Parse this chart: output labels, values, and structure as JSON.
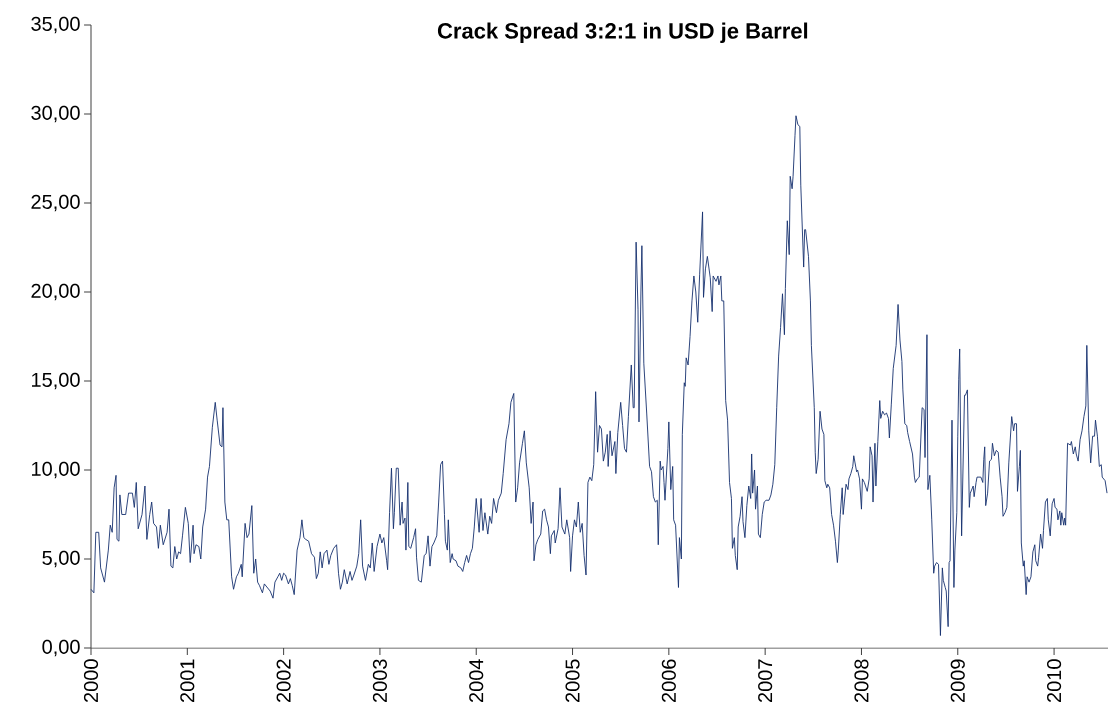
{
  "chart_data": {
    "type": "line",
    "title": "Crack Spread 3:2:1 in USD je Barrel",
    "color": "#15306e",
    "xlim": [
      2000,
      2010.56
    ],
    "ylim": [
      0,
      35
    ],
    "xticks": [
      2000,
      2001,
      2002,
      2003,
      2004,
      2005,
      2006,
      2007,
      2008,
      2009,
      2010
    ],
    "yticks": [
      {
        "value": 0,
        "label": "0,00"
      },
      {
        "value": 5,
        "label": "5,00"
      },
      {
        "value": 10,
        "label": "10,00"
      },
      {
        "value": 15,
        "label": "15,00"
      },
      {
        "value": 20,
        "label": "20,00"
      },
      {
        "value": 25,
        "label": "25,00"
      },
      {
        "value": 30,
        "label": "30,00"
      },
      {
        "value": 35,
        "label": "35,00"
      }
    ],
    "x": [
      2000.0,
      2000.03,
      2000.05,
      2000.08,
      2000.1,
      2000.14,
      2000.18,
      2000.2,
      2000.22,
      2000.24,
      2000.26,
      2000.27,
      2000.29,
      2000.3,
      2000.32,
      2000.36,
      2000.39,
      2000.43,
      2000.45,
      2000.47,
      2000.49,
      2000.53,
      2000.56,
      2000.58,
      2000.61,
      2000.63,
      2000.65,
      2000.68,
      2000.7,
      2000.72,
      2000.75,
      2000.79,
      2000.81,
      2000.83,
      2000.85,
      2000.87,
      2000.89,
      2000.91,
      2000.93,
      2000.95,
      2000.98,
      2001.01,
      2001.03,
      2001.06,
      2001.07,
      2001.09,
      2001.12,
      2001.14,
      2001.16,
      2001.19,
      2001.21,
      2001.23,
      2001.26,
      2001.29,
      2001.31,
      2001.34,
      2001.36,
      2001.37,
      2001.39,
      2001.41,
      2001.43,
      2001.46,
      2001.48,
      2001.51,
      2001.53,
      2001.56,
      2001.57,
      2001.6,
      2001.62,
      2001.64,
      2001.67,
      2001.69,
      2001.71,
      2001.73,
      2001.75,
      2001.78,
      2001.8,
      2001.83,
      2001.86,
      2001.89,
      2001.91,
      2001.94,
      2001.96,
      2001.98,
      2002.0,
      2002.02,
      2002.05,
      2002.07,
      2002.09,
      2002.11,
      2002.14,
      2002.17,
      2002.19,
      2002.21,
      2002.23,
      2002.26,
      2002.29,
      2002.32,
      2002.34,
      2002.36,
      2002.38,
      2002.4,
      2002.42,
      2002.45,
      2002.47,
      2002.49,
      2002.52,
      2002.55,
      2002.57,
      2002.59,
      2002.61,
      2002.63,
      2002.66,
      2002.69,
      2002.71,
      2002.73,
      2002.76,
      2002.78,
      2002.8,
      2002.82,
      2002.85,
      2002.88,
      2002.9,
      2002.92,
      2002.94,
      2002.97,
      2003.0,
      2003.02,
      2003.04,
      2003.07,
      2003.08,
      2003.1,
      2003.12,
      2003.14,
      2003.15,
      2003.17,
      2003.19,
      2003.21,
      2003.23,
      2003.24,
      2003.26,
      2003.27,
      2003.29,
      2003.3,
      2003.32,
      2003.35,
      2003.37,
      2003.38,
      2003.4,
      2003.43,
      2003.46,
      2003.48,
      2003.5,
      2003.52,
      2003.54,
      2003.56,
      2003.59,
      2003.61,
      2003.63,
      2003.65,
      2003.67,
      2003.68,
      2003.7,
      2003.71,
      2003.73,
      2003.75,
      2003.76,
      2003.79,
      2003.81,
      2003.84,
      2003.86,
      2003.88,
      2003.9,
      2003.92,
      2003.94,
      2003.96,
      2003.98,
      2004.0,
      2004.03,
      2004.05,
      2004.07,
      2004.09,
      2004.12,
      2004.14,
      2004.16,
      2004.18,
      2004.21,
      2004.23,
      2004.26,
      2004.28,
      2004.31,
      2004.34,
      2004.36,
      2004.39,
      2004.41,
      2004.43,
      2004.45,
      2004.48,
      2004.5,
      2004.52,
      2004.55,
      2004.57,
      2004.59,
      2004.6,
      2004.62,
      2004.64,
      2004.67,
      2004.69,
      2004.71,
      2004.73,
      2004.75,
      2004.77,
      2004.78,
      2004.81,
      2004.82,
      2004.85,
      2004.87,
      2004.89,
      2004.92,
      2004.94,
      2004.97,
      2004.98,
      2005.0,
      2005.02,
      2005.04,
      2005.06,
      2005.08,
      2005.1,
      2005.12,
      2005.14,
      2005.16,
      2005.18,
      2005.2,
      2005.22,
      2005.24,
      2005.26,
      2005.28,
      2005.3,
      2005.32,
      2005.34,
      2005.36,
      2005.37,
      2005.39,
      2005.41,
      2005.44,
      2005.45,
      2005.47,
      2005.5,
      2005.52,
      2005.54,
      2005.56,
      2005.58,
      2005.61,
      2005.63,
      2005.64,
      2005.66,
      2005.68,
      2005.69,
      2005.71,
      2005.72,
      2005.74,
      2005.77,
      2005.8,
      2005.82,
      2005.84,
      2005.86,
      2005.88,
      2005.89,
      2005.91,
      2005.92,
      2005.94,
      2005.95,
      2005.96,
      2005.99,
      2006.0,
      2006.02,
      2006.04,
      2006.05,
      2006.07,
      2006.1,
      2006.11,
      2006.13,
      2006.14,
      2006.16,
      2006.17,
      2006.18,
      2006.2,
      2006.22,
      2006.24,
      2006.26,
      2006.28,
      2006.3,
      2006.32,
      2006.35,
      2006.36,
      2006.38,
      2006.4,
      2006.43,
      2006.45,
      2006.46,
      2006.49,
      2006.51,
      2006.52,
      2006.54,
      2006.55,
      2006.57,
      2006.59,
      2006.61,
      2006.63,
      2006.65,
      2006.66,
      2006.68,
      2006.69,
      2006.71,
      2006.72,
      2006.74,
      2006.76,
      2006.77,
      2006.79,
      2006.81,
      2006.83,
      2006.85,
      2006.86,
      2006.87,
      2006.89,
      2006.9,
      2006.92,
      2006.93,
      2006.95,
      2006.97,
      2006.99,
      2007.01,
      2007.04,
      2007.06,
      2007.08,
      2007.1,
      2007.12,
      2007.14,
      2007.16,
      2007.18,
      2007.2,
      2007.21,
      2007.23,
      2007.25,
      2007.26,
      2007.28,
      2007.29,
      2007.31,
      2007.32,
      2007.34,
      2007.36,
      2007.37,
      2007.4,
      2007.41,
      2007.42,
      2007.45,
      2007.47,
      2007.48,
      2007.51,
      2007.52,
      2007.53,
      2007.55,
      2007.57,
      2007.59,
      2007.61,
      2007.62,
      2007.64,
      2007.65,
      2007.67,
      2007.69,
      2007.71,
      2007.73,
      2007.75,
      2007.76,
      2007.78,
      2007.8,
      2007.81,
      2007.84,
      2007.86,
      2007.87,
      2007.89,
      2007.91,
      2007.92,
      2007.95,
      2007.96,
      2007.98,
      2008.0,
      2008.01,
      2008.03,
      2008.06,
      2008.08,
      2008.09,
      2008.11,
      2008.12,
      2008.14,
      2008.15,
      2008.17,
      2008.19,
      2008.2,
      2008.22,
      2008.24,
      2008.26,
      2008.28,
      2008.29,
      2008.31,
      2008.33,
      2008.36,
      2008.38,
      2008.4,
      2008.42,
      2008.43,
      2008.45,
      2008.47,
      2008.48,
      2008.5,
      2008.53,
      2008.55,
      2008.56,
      2008.58,
      2008.6,
      2008.63,
      2008.65,
      2008.66,
      2008.68,
      2008.69,
      2008.71,
      2008.73,
      2008.75,
      2008.76,
      2008.78,
      2008.8,
      2008.82,
      2008.84,
      2008.85,
      2008.87,
      2008.88,
      2008.9,
      2008.91,
      2008.92,
      2008.94,
      2008.96,
      2008.97,
      2008.99,
      2009.0,
      2009.01,
      2009.02,
      2009.04,
      2009.07,
      2009.08,
      2009.1,
      2009.12,
      2009.13,
      2009.16,
      2009.17,
      2009.19,
      2009.2,
      2009.23,
      2009.24,
      2009.26,
      2009.27,
      2009.28,
      2009.29,
      2009.31,
      2009.33,
      2009.35,
      2009.36,
      2009.38,
      2009.4,
      2009.42,
      2009.44,
      2009.46,
      2009.47,
      2009.49,
      2009.51,
      2009.53,
      2009.56,
      2009.58,
      2009.59,
      2009.61,
      2009.62,
      2009.64,
      2009.65,
      2009.66,
      2009.68,
      2009.69,
      2009.71,
      2009.72,
      2009.74,
      2009.76,
      2009.78,
      2009.8,
      2009.81,
      2009.83,
      2009.84,
      2009.86,
      2009.88,
      2009.89,
      2009.91,
      2009.93,
      2009.94,
      2009.96,
      2009.98,
      2010.0,
      2010.01,
      2010.03,
      2010.04,
      2010.06,
      2010.07,
      2010.08,
      2010.1,
      2010.11,
      2010.12,
      2010.14,
      2010.17,
      2010.18,
      2010.2,
      2010.22,
      2010.23,
      2010.25,
      2010.27,
      2010.29,
      2010.31,
      2010.33,
      2010.34,
      2010.36,
      2010.38,
      2010.4,
      2010.42,
      2010.43,
      2010.45,
      2010.47,
      2010.49,
      2010.5,
      2010.53,
      2010.55
    ],
    "values": [
      3.3,
      3.1,
      6.5,
      6.5,
      4.5,
      3.7,
      5.5,
      6.9,
      6.5,
      9.0,
      9.7,
      6.1,
      6.0,
      8.6,
      7.5,
      7.5,
      8.7,
      8.7,
      7.9,
      9.3,
      6.7,
      7.5,
      9.1,
      6.1,
      7.5,
      8.2,
      7.0,
      6.8,
      5.6,
      6.9,
      5.8,
      6.5,
      7.8,
      4.6,
      4.5,
      5.7,
      5.0,
      5.4,
      5.3,
      6.3,
      7.9,
      7.0,
      4.8,
      6.9,
      5.3,
      5.8,
      5.7,
      5.0,
      6.8,
      7.8,
      9.6,
      10.2,
      12.4,
      13.8,
      12.8,
      11.4,
      11.3,
      13.5,
      8.2,
      7.2,
      7.2,
      4.0,
      3.3,
      4.0,
      4.2,
      4.7,
      4.0,
      7.0,
      6.2,
      6.4,
      8.0,
      4.2,
      5.0,
      3.7,
      3.5,
      3.1,
      3.6,
      3.4,
      3.2,
      2.8,
      3.7,
      4.0,
      4.2,
      3.8,
      4.2,
      4.1,
      3.6,
      3.9,
      3.5,
      3.0,
      5.5,
      6.2,
      7.2,
      6.2,
      6.1,
      6.0,
      5.3,
      5.1,
      3.9,
      4.2,
      5.4,
      4.5,
      5.3,
      5.5,
      4.7,
      5.2,
      5.6,
      5.8,
      4.2,
      3.3,
      3.7,
      4.4,
      3.6,
      4.3,
      3.8,
      4.1,
      4.6,
      5.3,
      7.2,
      4.6,
      3.8,
      4.7,
      4.5,
      5.9,
      4.3,
      5.7,
      6.4,
      5.9,
      6.2,
      4.9,
      4.4,
      7.6,
      10.1,
      6.7,
      7.6,
      10.1,
      10.1,
      6.9,
      8.2,
      7.0,
      7.3,
      5.5,
      9.3,
      5.7,
      5.6,
      6.2,
      6.7,
      5.1,
      3.8,
      3.7,
      5.2,
      5.3,
      6.3,
      4.6,
      5.7,
      5.9,
      6.3,
      8.2,
      10.3,
      10.5,
      7.5,
      6.0,
      5.5,
      7.2,
      4.8,
      5.3,
      5.0,
      4.9,
      4.6,
      4.5,
      4.3,
      4.8,
      5.2,
      4.8,
      5.3,
      5.6,
      6.8,
      8.4,
      6.5,
      8.4,
      6.6,
      7.6,
      6.4,
      7.4,
      7.0,
      8.4,
      7.6,
      8.3,
      8.7,
      9.8,
      11.7,
      12.6,
      13.8,
      14.3,
      8.2,
      9.0,
      10.4,
      11.5,
      12.2,
      10.4,
      9.0,
      7.0,
      8.2,
      4.9,
      5.8,
      6.1,
      6.4,
      7.7,
      7.8,
      7.2,
      6.8,
      5.3,
      6.3,
      6.6,
      5.9,
      6.7,
      9.0,
      6.8,
      6.4,
      7.2,
      6.2,
      4.3,
      6.3,
      7.2,
      6.8,
      8.2,
      6.5,
      7.0,
      5.2,
      4.1,
      9.3,
      9.6,
      9.4,
      10.3,
      14.4,
      11.0,
      12.5,
      12.3,
      10.5,
      11.0,
      12.0,
      10.2,
      12.2,
      10.8,
      11.6,
      9.8,
      12.1,
      13.8,
      12.5,
      11.2,
      11.0,
      13.0,
      15.9,
      13.5,
      13.5,
      22.8,
      19.0,
      12.7,
      20.0,
      22.6,
      16.0,
      13.2,
      10.2,
      9.9,
      8.5,
      8.2,
      8.3,
      5.8,
      10.5,
      10.0,
      10.2,
      9.3,
      8.3,
      11.2,
      12.7,
      8.9,
      10.2,
      7.2,
      6.9,
      3.4,
      6.2,
      5.0,
      12.0,
      14.9,
      14.7,
      16.3,
      15.9,
      17.5,
      19.5,
      20.9,
      20.0,
      18.3,
      21.0,
      24.5,
      19.7,
      21.3,
      22.0,
      20.8,
      18.9,
      20.9,
      20.6,
      20.9,
      20.4,
      20.9,
      19.5,
      19.5,
      13.9,
      12.8,
      9.3,
      8.4,
      5.6,
      6.2,
      5.2,
      4.4,
      6.8,
      7.4,
      8.5,
      7.1,
      6.2,
      8.0,
      9.1,
      8.4,
      10.9,
      8.7,
      10.0,
      7.8,
      9.1,
      6.4,
      6.2,
      7.5,
      8.2,
      8.3,
      8.3,
      8.6,
      9.2,
      10.3,
      13.5,
      16.4,
      18.0,
      19.9,
      17.6,
      20.2,
      24.0,
      22.1,
      26.5,
      25.8,
      26.5,
      28.8,
      29.9,
      29.4,
      29.3,
      26.0,
      21.4,
      23.5,
      23.5,
      22.0,
      19.5,
      17.0,
      13.5,
      11.0,
      9.8,
      10.6,
      13.3,
      12.3,
      12.0,
      9.4,
      9.0,
      9.2,
      9.0,
      7.5,
      6.9,
      6.0,
      4.8,
      5.5,
      7.5,
      9.0,
      7.5,
      9.2,
      8.9,
      9.5,
      9.8,
      10.2,
      10.8,
      9.9,
      10.0,
      9.5,
      7.8,
      9.5,
      9.3,
      8.8,
      9.5,
      11.3,
      10.8,
      8.2,
      11.5,
      9.1,
      11.6,
      13.9,
      12.9,
      13.3,
      13.1,
      13.2,
      12.9,
      11.8,
      13.7,
      15.7,
      17.0,
      19.3,
      17.3,
      16.1,
      14.5,
      12.6,
      12.5,
      12.1,
      11.6,
      10.9,
      9.6,
      9.3,
      9.5,
      9.6,
      13.5,
      13.4,
      10.7,
      17.6,
      8.9,
      9.7,
      7.2,
      4.2,
      4.6,
      4.8,
      4.7,
      0.7,
      4.5,
      3.8,
      3.4,
      3.2,
      1.2,
      4.8,
      4.9,
      12.8,
      3.4,
      5.5,
      7.6,
      11.9,
      15.1,
      16.8,
      6.3,
      14.2,
      14.2,
      14.5,
      7.9,
      8.7,
      9.1,
      8.5,
      9.3,
      9.6,
      9.6,
      9.6,
      9.3,
      10.6,
      11.3,
      8.0,
      8.7,
      10.5,
      10.6,
      11.5,
      10.8,
      11.1,
      11.0,
      9.6,
      8.5,
      7.4,
      7.6,
      7.9,
      10.4,
      13.0,
      12.2,
      12.6,
      12.6,
      8.8,
      10.2,
      11.1,
      5.9,
      4.6,
      4.9,
      3.0,
      4.0,
      3.7,
      4.0,
      5.4,
      5.8,
      4.9,
      4.6,
      5.1,
      6.4,
      5.6,
      6.6,
      8.2,
      8.4,
      7.2,
      6.3,
      8.1,
      8.4,
      7.9,
      7.8,
      7.2,
      7.7,
      6.9,
      7.6,
      6.9,
      7.3,
      6.9,
      11.5,
      11.4,
      11.6,
      10.9,
      11.3,
      10.9,
      10.5,
      11.7,
      12.2,
      13.0,
      13.6,
      17.0,
      12.2,
      10.4,
      11.9,
      11.9,
      12.8,
      11.9,
      10.2,
      10.3,
      9.6,
      9.4,
      8.7
    ]
  }
}
